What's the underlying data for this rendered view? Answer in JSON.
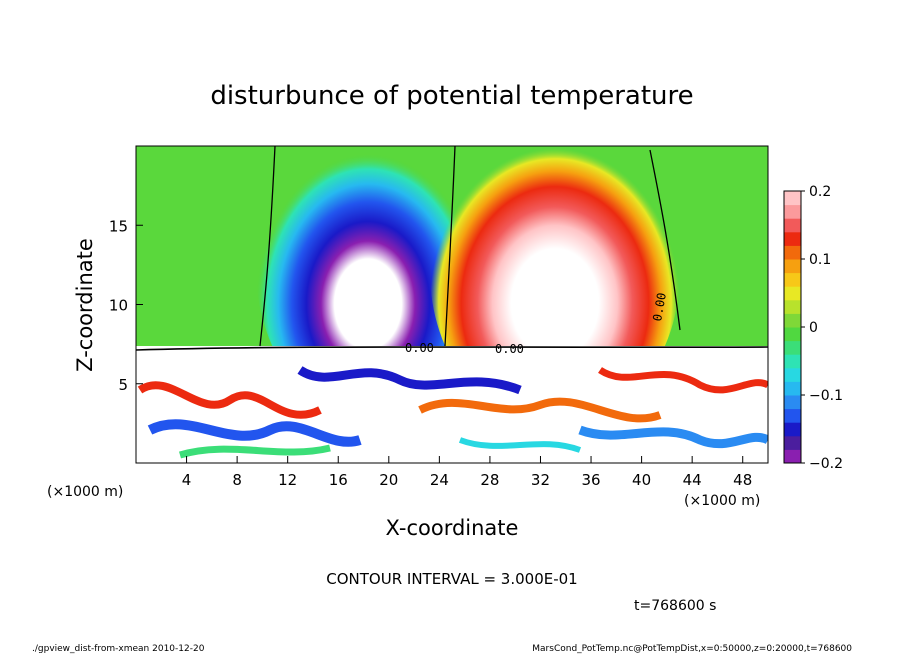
{
  "chart_data": {
    "type": "heatmap",
    "title": "disturbunce of potential temperature",
    "xlabel": "X-coordinate",
    "ylabel": "Z-coordinate",
    "x_unit_left": "(×1000 m)",
    "x_unit_right": "(×1000 m)",
    "xlim": [
      0,
      50
    ],
    "ylim": [
      0,
      20
    ],
    "xticks": [
      4,
      8,
      12,
      16,
      20,
      24,
      28,
      32,
      36,
      40,
      44,
      48
    ],
    "yticks": [
      5,
      10,
      15
    ],
    "colorbar": {
      "range": [
        -0.2,
        0.2
      ],
      "ticks": [
        {
          "value": 0.2,
          "label": "0.2"
        },
        {
          "value": 0.1,
          "label": "0.1"
        },
        {
          "value": 0,
          "label": "0"
        },
        {
          "value": -0.1,
          "label": "−0.1"
        },
        {
          "value": -0.2,
          "label": "−0.2"
        }
      ],
      "colors": [
        "#8a1fb0",
        "#4b1e9e",
        "#1a1ac8",
        "#2255ee",
        "#2a8bf2",
        "#27b9f0",
        "#28d8e2",
        "#2ee3b4",
        "#3bde78",
        "#50d840",
        "#7fd838",
        "#b8e22c",
        "#e8e824",
        "#f7c818",
        "#f6a010",
        "#f26a0c",
        "#ec2a10",
        "#f25a5a",
        "#fb9a9c",
        "#ffc4c6"
      ]
    },
    "contour_labels": [
      "0.00",
      "0.00",
      "0.00"
    ],
    "annotations": {
      "contour_interval": "CONTOUR INTERVAL = 3.000E-01",
      "time": "t=768600 s"
    }
  },
  "footer": {
    "left": "./gpview_dist-from-xmean  2010-12-20",
    "right": "MarsCond_PotTemp.nc@PotTempDist,x=0:50000,z=0:20000,t=768600"
  }
}
